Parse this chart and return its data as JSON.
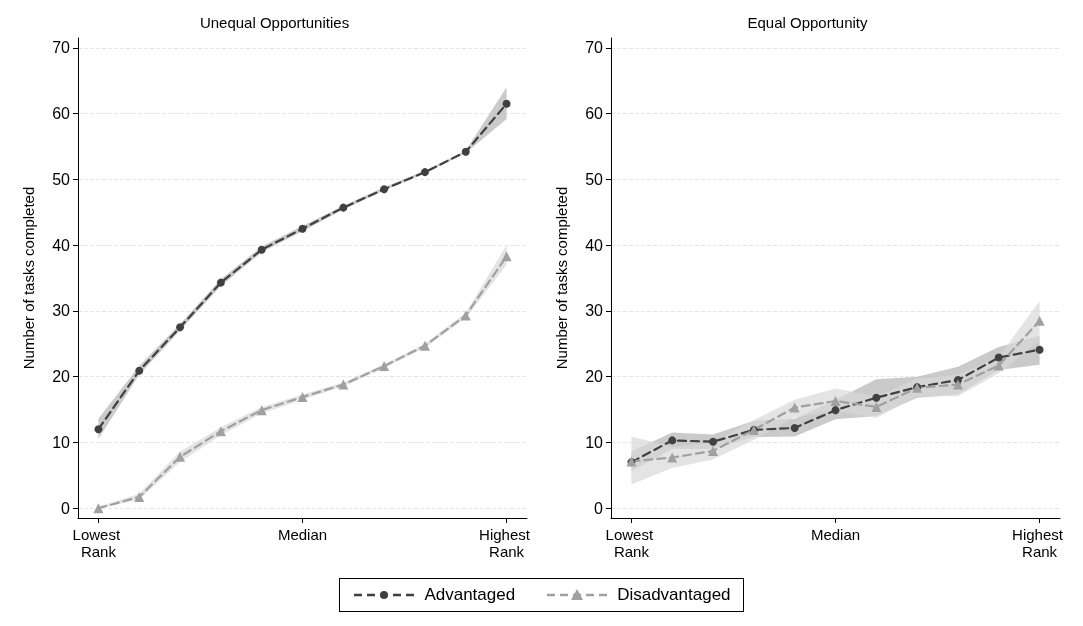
{
  "chart_data": [
    {
      "type": "line",
      "title": "Unequal Opportunities",
      "ylabel": "Number of tasks completed",
      "categories": [
        "Lowest Rank",
        null,
        null,
        null,
        null,
        "Median",
        null,
        null,
        null,
        null,
        "Highest Rank"
      ],
      "ylim": [
        -1.5,
        71.5
      ],
      "yticks": [
        0,
        10,
        20,
        30,
        40,
        50,
        60,
        70
      ],
      "grid": "y",
      "legend": "bottom",
      "line_style": "dashed",
      "series": [
        {
          "name": "Advantaged",
          "color": "#404040",
          "marker": "circle",
          "values": [
            12,
            20.9,
            27.5,
            34.3,
            39.3,
            42.5,
            45.7,
            48.5,
            51.1,
            54.2,
            61.5
          ],
          "lower": [
            10.5,
            20.3,
            27,
            33.8,
            38.9,
            42.1,
            45.4,
            48.3,
            50.9,
            54,
            59.2
          ],
          "upper": [
            13.6,
            21.6,
            28,
            34.8,
            39.8,
            42.9,
            46,
            48.8,
            51.3,
            54.4,
            64
          ]
        },
        {
          "name": "Disadvantaged",
          "color": "#a0a0a0",
          "marker": "triangle",
          "values": [
            0,
            1.7,
            7.8,
            11.7,
            14.9,
            16.9,
            18.8,
            21.6,
            24.7,
            29.3,
            38.3
          ],
          "lower": [
            -0.1,
            1.3,
            7,
            11.1,
            14.4,
            16.5,
            18.5,
            21.3,
            24.4,
            28.9,
            37
          ],
          "upper": [
            0.2,
            2.2,
            8.6,
            12.3,
            15.4,
            17.3,
            19.1,
            21.9,
            25,
            29.7,
            40
          ]
        }
      ]
    },
    {
      "type": "line",
      "title": "Equal Opportunity",
      "ylabel": "Number of tasks completed",
      "categories": [
        "Lowest Rank",
        null,
        null,
        null,
        null,
        "Median",
        null,
        null,
        null,
        null,
        "Highest Rank"
      ],
      "ylim": [
        -1.5,
        71.5
      ],
      "yticks": [
        0,
        10,
        20,
        30,
        40,
        50,
        60,
        70
      ],
      "grid": "y",
      "line_style": "dashed",
      "series": [
        {
          "color": "#404040",
          "marker": "circle",
          "values": [
            7,
            10.3,
            10.1,
            11.9,
            12.2,
            14.9,
            16.8,
            18.4,
            19.5,
            22.9,
            24.1
          ],
          "lower": [
            5.6,
            9,
            9,
            10.8,
            10.9,
            13.5,
            14,
            16.8,
            17.3,
            21,
            21.8
          ],
          "upper": [
            8.6,
            11.5,
            11.2,
            13.3,
            13.6,
            16.5,
            19.6,
            20,
            21.5,
            24.5,
            26.2
          ]
        },
        {
          "color": "#a0a0a0",
          "marker": "triangle",
          "values": [
            7.1,
            7.7,
            8.7,
            11.9,
            15.3,
            16.3,
            15.4,
            18.3,
            18.8,
            21.7,
            28.5
          ],
          "lower": [
            3.6,
            6.1,
            7.4,
            10.4,
            13.8,
            14.8,
            13.7,
            17,
            17,
            20.5,
            25.5
          ],
          "upper": [
            10.9,
            9.3,
            10,
            13.4,
            16.5,
            18.2,
            17,
            19.7,
            20.3,
            23,
            31.5
          ]
        }
      ]
    }
  ]
}
